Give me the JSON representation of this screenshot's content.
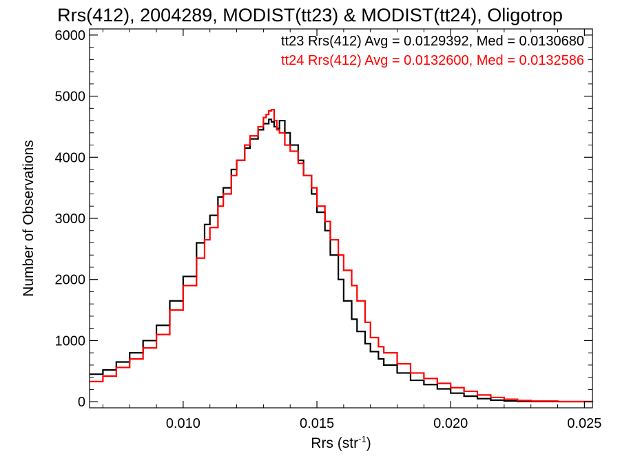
{
  "chart_data": {
    "type": "line",
    "title": "Rrs(412), 2004289, MODIST(tt23) & MODIST(tt24), Oligotrop",
    "xlabel": "Rrs (str",
    "xlabel_superscript": "-1",
    "xlabel_suffix": ")",
    "ylabel": "Number of Observations",
    "xlim": [
      0.0065,
      0.0253
    ],
    "ylim": [
      -100,
      6100
    ],
    "x_ticks": [
      0.01,
      0.015,
      0.02,
      0.025
    ],
    "x_tick_labels": [
      "0.010",
      "0.015",
      "0.020",
      "0.025"
    ],
    "y_ticks": [
      0,
      1000,
      2000,
      3000,
      4000,
      5000,
      6000
    ],
    "y_tick_labels": [
      "0",
      "1000",
      "2000",
      "3000",
      "4000",
      "5000",
      "6000"
    ],
    "grid": false,
    "legend_position": "top-right",
    "series": [
      {
        "name": "tt23",
        "legend_text": "tt23 Rrs(412) Avg = 0.0129392, Med = 0.0130680",
        "color": "#000000",
        "x": [
          0.0065,
          0.007,
          0.0075,
          0.008,
          0.0085,
          0.009,
          0.0095,
          0.01,
          0.0105,
          0.0108,
          0.011,
          0.0113,
          0.0115,
          0.0118,
          0.012,
          0.0123,
          0.0125,
          0.0128,
          0.013,
          0.0132,
          0.0133,
          0.0134,
          0.0135,
          0.0136,
          0.0138,
          0.014,
          0.0143,
          0.0145,
          0.0148,
          0.015,
          0.0153,
          0.0155,
          0.0158,
          0.016,
          0.0163,
          0.0165,
          0.0168,
          0.017,
          0.0173,
          0.0175,
          0.018,
          0.0185,
          0.019,
          0.0195,
          0.02,
          0.0205,
          0.021,
          0.0215,
          0.022,
          0.0225,
          0.023,
          0.024,
          0.0253
        ],
        "y": [
          450,
          520,
          650,
          800,
          1000,
          1250,
          1650,
          2050,
          2600,
          2900,
          3050,
          3350,
          3500,
          3800,
          3950,
          4150,
          4300,
          4450,
          4550,
          4620,
          4580,
          4500,
          4470,
          4600,
          4400,
          4200,
          3950,
          3700,
          3400,
          3100,
          2800,
          2400,
          2000,
          1650,
          1350,
          1150,
          950,
          820,
          700,
          600,
          470,
          350,
          280,
          210,
          140,
          90,
          50,
          25,
          12,
          6,
          3,
          1,
          0
        ]
      },
      {
        "name": "tt24",
        "legend_text": "tt24 Rrs(412) Avg = 0.0132600, Med = 0.0132586",
        "color": "#ff0000",
        "x": [
          0.0065,
          0.007,
          0.0075,
          0.008,
          0.0085,
          0.009,
          0.0095,
          0.01,
          0.0105,
          0.0108,
          0.011,
          0.0113,
          0.0115,
          0.0118,
          0.012,
          0.0123,
          0.0125,
          0.0128,
          0.013,
          0.0131,
          0.0132,
          0.0133,
          0.0134,
          0.0135,
          0.0136,
          0.0138,
          0.014,
          0.0143,
          0.0145,
          0.0148,
          0.015,
          0.0153,
          0.0155,
          0.0158,
          0.016,
          0.0163,
          0.0165,
          0.0168,
          0.017,
          0.0173,
          0.0175,
          0.018,
          0.0185,
          0.019,
          0.0195,
          0.02,
          0.0205,
          0.021,
          0.0215,
          0.022,
          0.0225,
          0.023,
          0.024,
          0.0253
        ],
        "y": [
          330,
          420,
          560,
          700,
          880,
          1100,
          1500,
          1900,
          2350,
          2650,
          2850,
          3200,
          3400,
          3700,
          3950,
          4200,
          4350,
          4500,
          4650,
          4700,
          4760,
          4780,
          4600,
          4450,
          4400,
          4200,
          4100,
          3900,
          3700,
          3500,
          3200,
          2950,
          2650,
          2400,
          2150,
          1900,
          1650,
          1300,
          1050,
          900,
          800,
          620,
          470,
          380,
          300,
          230,
          170,
          110,
          70,
          40,
          20,
          10,
          3,
          0
        ]
      }
    ]
  }
}
